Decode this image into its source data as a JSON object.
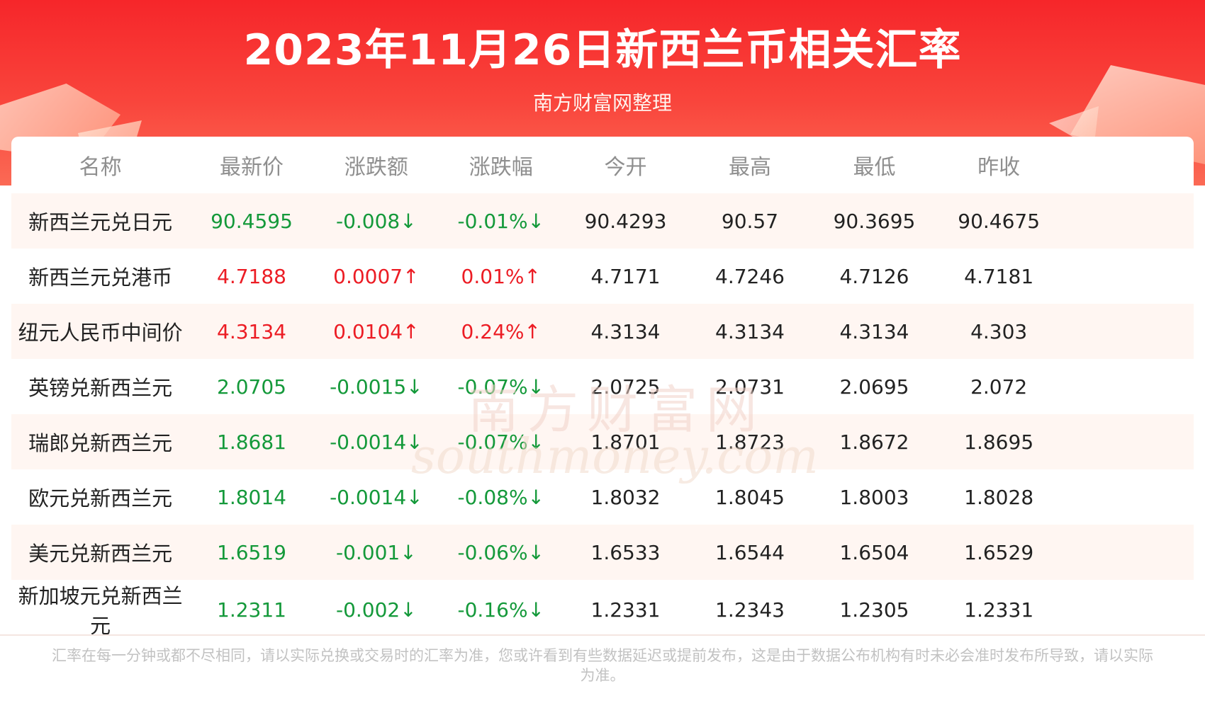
{
  "header": {
    "title": "2023年11月26日新西兰币相关汇率",
    "subtitle": "南方财富网整理"
  },
  "colors": {
    "up": "#ec1c24",
    "down": "#14993a",
    "header_red": "#f6262a"
  },
  "table": {
    "columns": [
      "名称",
      "最新价",
      "涨跌额",
      "涨跌幅",
      "今开",
      "最高",
      "最低",
      "昨收"
    ],
    "rows": [
      {
        "name": "新西兰元兑日元",
        "dir": "down",
        "latest": "90.4595",
        "change": "-0.008↓",
        "pct": "-0.01%↓",
        "open": "90.4293",
        "high": "90.57",
        "low": "90.3695",
        "prev": "90.4675"
      },
      {
        "name": "新西兰元兑港币",
        "dir": "up",
        "latest": "4.7188",
        "change": "0.0007↑",
        "pct": "0.01%↑",
        "open": "4.7171",
        "high": "4.7246",
        "low": "4.7126",
        "prev": "4.7181"
      },
      {
        "name": "纽元人民币中间价",
        "dir": "up",
        "latest": "4.3134",
        "change": "0.0104↑",
        "pct": "0.24%↑",
        "open": "4.3134",
        "high": "4.3134",
        "low": "4.3134",
        "prev": "4.303"
      },
      {
        "name": "英镑兑新西兰元",
        "dir": "down",
        "latest": "2.0705",
        "change": "-0.0015↓",
        "pct": "-0.07%↓",
        "open": "2.0725",
        "high": "2.0731",
        "low": "2.0695",
        "prev": "2.072"
      },
      {
        "name": "瑞郎兑新西兰元",
        "dir": "down",
        "latest": "1.8681",
        "change": "-0.0014↓",
        "pct": "-0.07%↓",
        "open": "1.8701",
        "high": "1.8723",
        "low": "1.8672",
        "prev": "1.8695"
      },
      {
        "name": "欧元兑新西兰元",
        "dir": "down",
        "latest": "1.8014",
        "change": "-0.0014↓",
        "pct": "-0.08%↓",
        "open": "1.8032",
        "high": "1.8045",
        "low": "1.8003",
        "prev": "1.8028"
      },
      {
        "name": "美元兑新西兰元",
        "dir": "down",
        "latest": "1.6519",
        "change": "-0.001↓",
        "pct": "-0.06%↓",
        "open": "1.6533",
        "high": "1.6544",
        "low": "1.6504",
        "prev": "1.6529"
      },
      {
        "name": "新加坡元兑新西兰元",
        "dir": "down",
        "latest": "1.2311",
        "change": "-0.002↓",
        "pct": "-0.16%↓",
        "open": "1.2331",
        "high": "1.2343",
        "low": "1.2305",
        "prev": "1.2331"
      }
    ]
  },
  "watermark": {
    "cn": "南方财富网",
    "en": "southmoney.com"
  },
  "footer": {
    "disclaimer": "汇率在每一分钟或都不尽相同，请以实际兑换或交易时的汇率为准，您或许看到有些数据延迟或提前发布，这是由于数据公布机构有时未必会准时发布所导致，请以实际为准。"
  }
}
